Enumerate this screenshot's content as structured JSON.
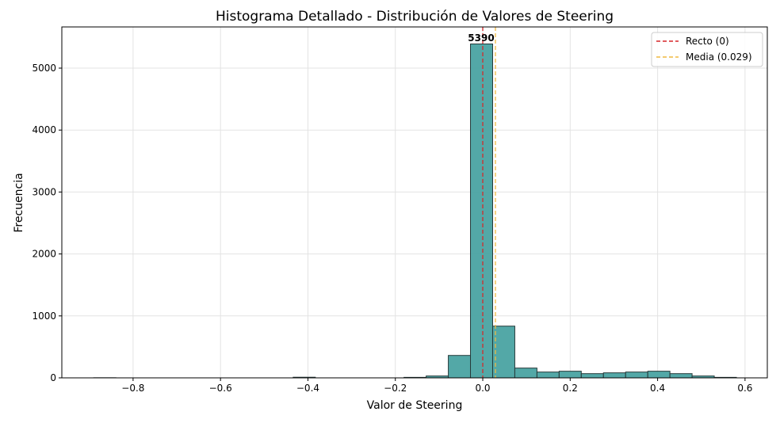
{
  "chart_data": {
    "type": "bar",
    "title": "Histograma Detallado - Distribución de Valores de Steering",
    "xlabel": "Valor de Steering",
    "ylabel": "Frecuencia",
    "xlim": [
      -0.963,
      0.651
    ],
    "ylim": [
      0,
      5665
    ],
    "grid": true,
    "legend_placement": "top-right",
    "x_ticks": [
      -0.8,
      -0.6,
      -0.4,
      -0.2,
      0.0,
      0.2,
      0.4,
      0.6
    ],
    "x_tick_labels": [
      "−0.8",
      "−0.6",
      "−0.4",
      "−0.2",
      "0.0",
      "0.2",
      "0.4",
      "0.6"
    ],
    "y_ticks": [
      0,
      1000,
      2000,
      3000,
      4000,
      5000
    ],
    "y_tick_labels": [
      "0",
      "1000",
      "2000",
      "3000",
      "4000",
      "5000"
    ],
    "bin_start": -0.89,
    "bin_width": 0.0507,
    "values": [
      2,
      0,
      0,
      0,
      0,
      0,
      0,
      0,
      0,
      10,
      0,
      0,
      0,
      0,
      8,
      30,
      362,
      5390,
      835,
      158,
      94,
      107,
      68,
      81,
      94,
      107,
      68,
      30,
      8
    ],
    "bar_color": "#4aa3a2",
    "edge_color": "#263a3a",
    "peak_label": "5390",
    "lines": [
      {
        "name": "Recto (0)",
        "x": 0,
        "color": "#d62728"
      },
      {
        "name": "Media (0.029)",
        "x": 0.029,
        "color": "#f0b840"
      }
    ]
  }
}
